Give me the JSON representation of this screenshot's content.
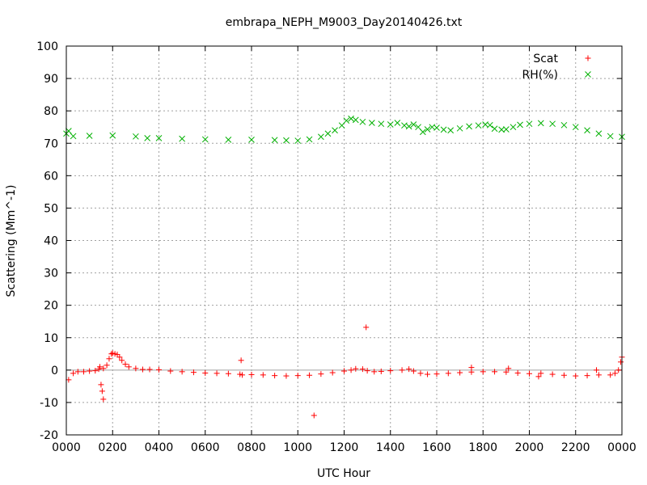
{
  "chart_data": {
    "type": "scatter",
    "title": "embrapa_NEPH_M9003_Day20140426.txt",
    "xlabel": "UTC Hour",
    "ylabel": "Scattering (Mm^-1)",
    "xlim": [
      0,
      24
    ],
    "ylim": [
      -20,
      100
    ],
    "grid": true,
    "legend_position": "top-right",
    "x_ticks": [
      {
        "value": 0,
        "label": "0000"
      },
      {
        "value": 2,
        "label": "0200"
      },
      {
        "value": 4,
        "label": "0400"
      },
      {
        "value": 6,
        "label": "0600"
      },
      {
        "value": 8,
        "label": "0800"
      },
      {
        "value": 10,
        "label": "1000"
      },
      {
        "value": 12,
        "label": "1200"
      },
      {
        "value": 14,
        "label": "1400"
      },
      {
        "value": 16,
        "label": "1600"
      },
      {
        "value": 18,
        "label": "1800"
      },
      {
        "value": 20,
        "label": "2000"
      },
      {
        "value": 22,
        "label": "2200"
      },
      {
        "value": 24,
        "label": "0000"
      }
    ],
    "y_ticks": [
      {
        "value": 100,
        "label": "100"
      },
      {
        "value": 90,
        "label": "90"
      },
      {
        "value": 80,
        "label": "80"
      },
      {
        "value": 70,
        "label": "70"
      },
      {
        "value": 60,
        "label": "60"
      },
      {
        "value": 50,
        "label": "50"
      },
      {
        "value": 40,
        "label": "40"
      },
      {
        "value": 30,
        "label": "30"
      },
      {
        "value": 20,
        "label": "20"
      },
      {
        "value": 10,
        "label": "10"
      },
      {
        "value": 0,
        "label": "0"
      },
      {
        "value": -10,
        "label": "-10"
      },
      {
        "value": -20,
        "label": "-20"
      }
    ],
    "series": [
      {
        "name": "Scat",
        "marker": "+",
        "color": "#ff0000",
        "x": [
          0.1,
          0.3,
          0.5,
          0.75,
          1.0,
          1.25,
          1.4,
          1.6,
          1.75,
          1.85,
          1.95,
          2.0,
          2.1,
          2.2,
          2.3,
          2.4,
          2.55,
          2.7,
          3.0,
          3.3,
          3.6,
          4.0,
          4.5,
          5.0,
          5.5,
          6.0,
          6.5,
          7.0,
          7.5,
          7.6,
          8.0,
          8.5,
          9.0,
          9.5,
          10.0,
          10.5,
          11.0,
          11.5,
          12.0,
          12.3,
          12.5,
          12.8,
          13.0,
          13.3,
          13.6,
          14.0,
          14.5,
          14.8,
          15.0,
          15.3,
          15.6,
          16.0,
          16.5,
          17.0,
          17.5,
          18.0,
          18.5,
          19.0,
          19.5,
          20.0,
          20.5,
          21.0,
          21.5,
          22.0,
          22.5,
          23.0,
          23.5,
          23.7,
          23.85,
          23.95,
          24.0,
          1.5,
          1.55,
          1.6,
          7.55,
          10.7,
          12.95,
          1.45,
          17.5,
          19.1,
          20.4,
          22.9
        ],
        "y": [
          -3,
          -1,
          -0.5,
          -0.5,
          -0.3,
          -0.2,
          0.3,
          0.5,
          1.5,
          3.5,
          5.0,
          5.2,
          5.0,
          4.8,
          4.0,
          3.0,
          1.8,
          1.0,
          0.5,
          0.2,
          0.2,
          0.1,
          -0.3,
          -0.5,
          -0.7,
          -0.9,
          -1.0,
          -1.1,
          -1.3,
          -1.5,
          -1.4,
          -1.5,
          -1.7,
          -1.8,
          -1.7,
          -1.6,
          -1.2,
          -0.8,
          -0.3,
          0.0,
          0.4,
          0.3,
          -0.2,
          -0.5,
          -0.4,
          -0.2,
          0.0,
          0.3,
          -0.3,
          -1.0,
          -1.3,
          -1.2,
          -1.0,
          -0.8,
          -0.6,
          -0.5,
          -0.5,
          -0.6,
          -0.9,
          -1.1,
          -1.0,
          -1.3,
          -1.6,
          -1.8,
          -1.7,
          -1.5,
          -1.5,
          -1.0,
          0.0,
          2.5,
          4.0,
          -4.5,
          -6.5,
          -9.0,
          3.0,
          -14.0,
          13.2,
          1.0,
          0.8,
          0.5,
          -2.0,
          0.0
        ]
      },
      {
        "name": "RH(%)",
        "marker": "x",
        "color": "#00b000",
        "x": [
          0.0,
          0.1,
          0.3,
          1.0,
          2.0,
          3.0,
          3.5,
          4.0,
          5.0,
          6.0,
          7.0,
          8.0,
          9.0,
          9.5,
          10.0,
          10.5,
          11.0,
          11.3,
          11.6,
          11.9,
          12.1,
          12.3,
          12.5,
          12.8,
          13.2,
          13.6,
          14.0,
          14.3,
          14.6,
          14.8,
          15.0,
          15.2,
          15.4,
          15.6,
          15.8,
          16.0,
          16.3,
          16.6,
          17.0,
          17.4,
          17.8,
          18.1,
          18.3,
          18.5,
          18.8,
          19.0,
          19.3,
          19.6,
          20.0,
          20.5,
          21.0,
          21.5,
          22.0,
          22.5,
          23.0,
          23.5,
          24.0
        ],
        "y": [
          73.0,
          73.8,
          72.2,
          72.3,
          72.4,
          72.1,
          71.6,
          71.6,
          71.4,
          71.2,
          71.1,
          71.1,
          71.0,
          70.9,
          70.8,
          71.2,
          72.0,
          73.0,
          74.0,
          75.5,
          77.0,
          77.6,
          77.2,
          76.6,
          76.3,
          76.0,
          75.8,
          76.3,
          75.5,
          75.2,
          75.8,
          75.0,
          73.5,
          74.3,
          75.0,
          74.8,
          74.2,
          74.0,
          74.6,
          75.2,
          75.5,
          75.8,
          75.6,
          74.5,
          74.2,
          74.3,
          75.0,
          75.7,
          76.0,
          76.2,
          76.0,
          75.6,
          75.0,
          74.0,
          73.0,
          72.2,
          72.0
        ]
      }
    ]
  }
}
